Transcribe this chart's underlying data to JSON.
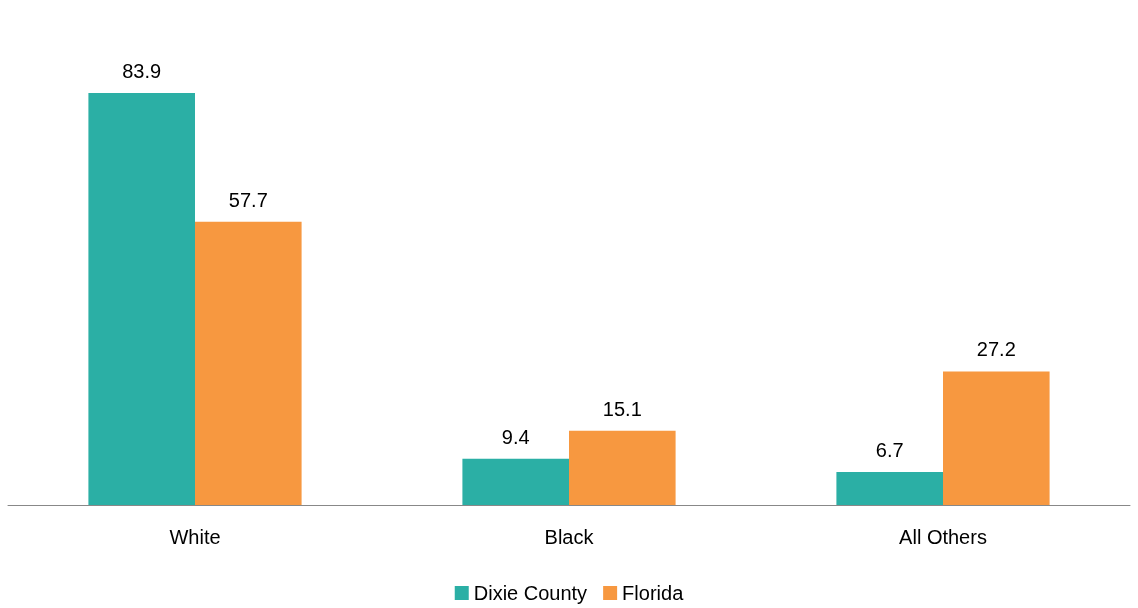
{
  "chart_data": {
    "type": "bar",
    "categories": [
      "White",
      "Black",
      "All Others"
    ],
    "series": [
      {
        "name": "Dixie County",
        "color": "#2bafa5",
        "values": [
          83.9,
          9.4,
          6.7
        ]
      },
      {
        "name": "Florida",
        "color": "#f79840",
        "values": [
          57.7,
          15.1,
          27.2
        ]
      }
    ],
    "data_labels": true,
    "legend": "bottom",
    "grid": false
  }
}
